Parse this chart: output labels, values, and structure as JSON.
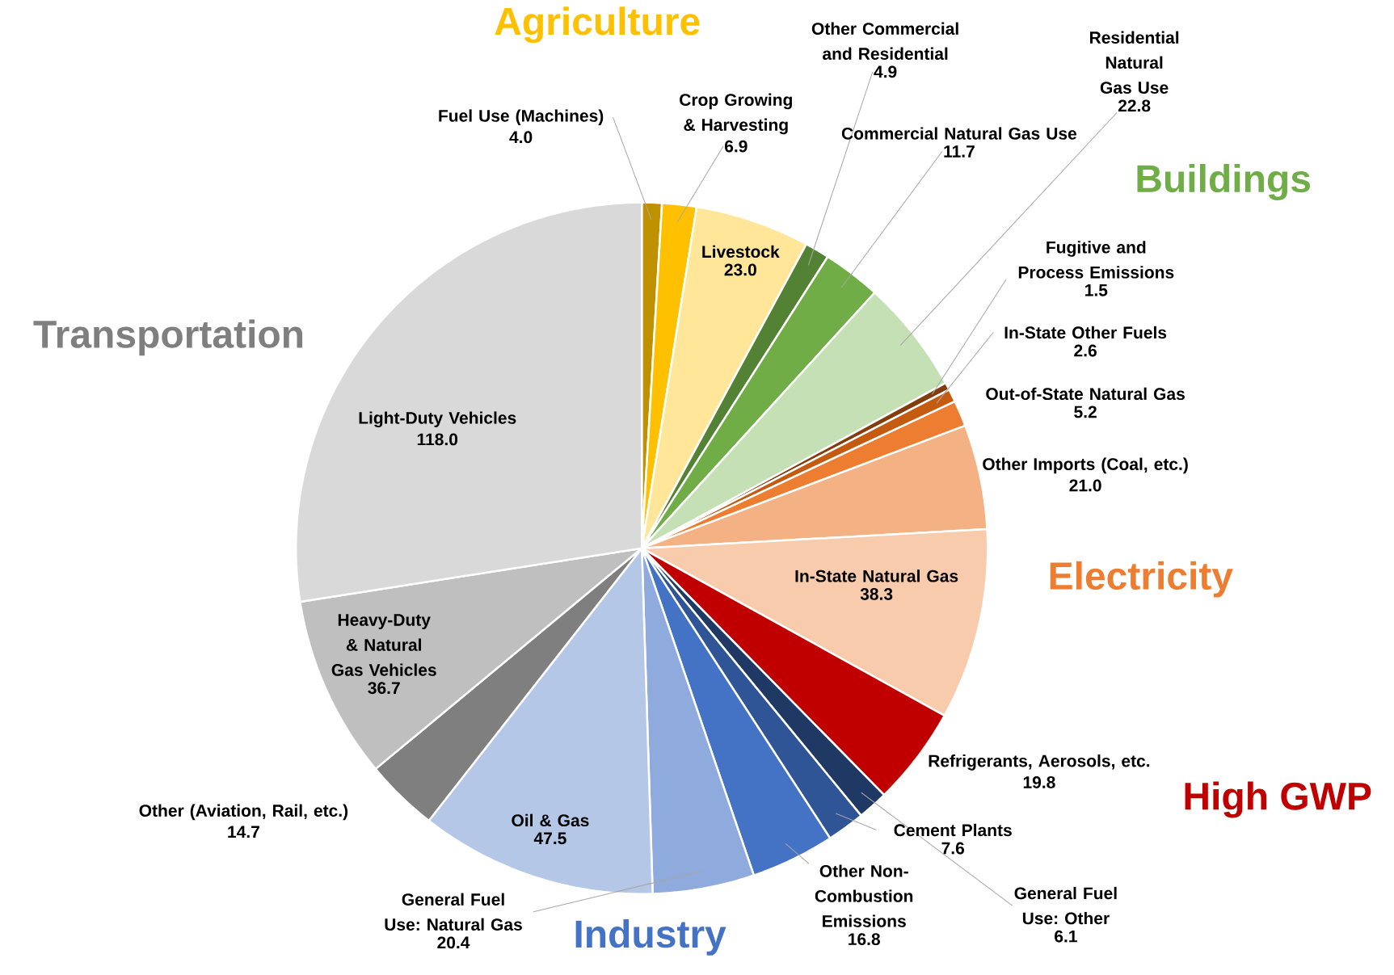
{
  "chart_data": {
    "type": "pie",
    "categories": [
      "Fuel Use (Machines)",
      "Crop Growing & Harvesting",
      "Livestock",
      "Other Commercial and Residential",
      "Commercial Natural Gas Use",
      "Residential Natural Gas Use",
      "Fugitive and Process Emissions",
      "In-State Other Fuels",
      "Out-of-State Natural Gas",
      "Other Imports (Coal, etc.)",
      "In-State Natural Gas",
      "Refrigerants, Aerosols, etc.",
      "General Fuel Use: Other",
      "Cement Plants",
      "Other Non-Combustion Emissions",
      "General Fuel Use: Natural Gas",
      "Oil & Gas",
      "Other (Aviation, Rail, etc.)",
      "Heavy-Duty & Natural Gas Vehicles",
      "Light-Duty Vehicles"
    ],
    "values": [
      4.0,
      6.9,
      23.0,
      4.9,
      11.7,
      22.8,
      1.5,
      2.6,
      5.2,
      21.0,
      38.3,
      19.8,
      6.1,
      7.6,
      16.8,
      20.4,
      47.5,
      14.7,
      36.7,
      118.0
    ],
    "colors": [
      "#bf9000",
      "#ffc000",
      "#ffe699",
      "#548235",
      "#70ad47",
      "#c5e0b4",
      "#843c0c",
      "#c55a11",
      "#ed7d31",
      "#f4b183",
      "#f8cbad",
      "#c00000",
      "#203864",
      "#2f5597",
      "#4472c4",
      "#8faadc",
      "#b4c7e7",
      "#7f7f7f",
      "#bfbfbf",
      "#d9d9d9"
    ],
    "value_labels": [
      "4.0",
      "6.9",
      "23.0",
      "4.9",
      "11.7",
      "22.8",
      "1.5",
      "2.6",
      "5.2",
      "21.0",
      "38.3",
      "19.8",
      "6.1",
      "7.6",
      "16.8",
      "20.4",
      "47.5",
      "14.7",
      "36.7",
      "118.0"
    ],
    "annotations": [
      "Agriculture",
      "Buildings",
      "Electricity",
      "High GWP",
      "Industry",
      "Transportation"
    ]
  }
}
